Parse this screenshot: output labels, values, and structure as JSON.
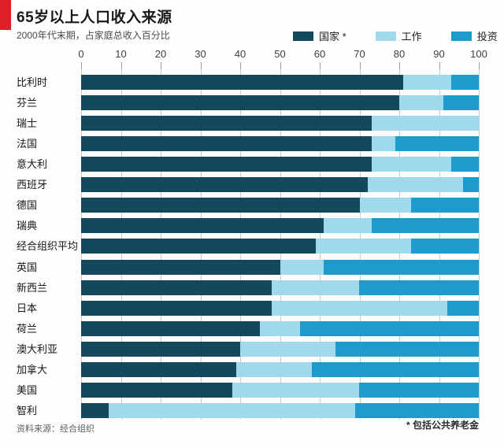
{
  "accent_color": "#dd1f26",
  "header": {
    "title": "65岁以上人口收入来源",
    "subtitle": "2000年代末期，占家庭总收入百分比"
  },
  "legend": [
    {
      "label": "国家 *",
      "color": "#14495d"
    },
    {
      "label": "工作",
      "color": "#a0d8ec"
    },
    {
      "label": "投资",
      "color": "#1e9bcd"
    }
  ],
  "footer": {
    "source": "资料来源：经合组织",
    "footnote": "* 包括公共养老金"
  },
  "chart_data": {
    "type": "bar",
    "orientation": "horizontal",
    "stacked": true,
    "title": "65岁以上人口收入来源",
    "subtitle": "2000年代末期，占家庭总收入百分比",
    "xlim": [
      0,
      100
    ],
    "x_ticks": [
      0,
      10,
      20,
      30,
      40,
      50,
      60,
      70,
      80,
      90,
      100
    ],
    "grid": true,
    "legend_position": "top-right",
    "categories": [
      "比利时",
      "芬兰",
      "瑞士",
      "法国",
      "意大利",
      "西班牙",
      "德国",
      "瑞典",
      "经合组织平均",
      "英国",
      "新西兰",
      "日本",
      "荷兰",
      "澳大利亚",
      "加拿大",
      "美国",
      "智利"
    ],
    "series": [
      {
        "name": "国家 *",
        "color": "#14495d",
        "values": [
          81,
          80,
          73,
          73,
          73,
          72,
          70,
          61,
          59,
          50,
          48,
          48,
          45,
          40,
          39,
          38,
          7
        ]
      },
      {
        "name": "工作",
        "color": "#a0d8ec",
        "values": [
          12,
          11,
          27,
          6,
          20,
          24,
          13,
          12,
          24,
          11,
          22,
          44,
          10,
          24,
          19,
          32,
          62
        ]
      },
      {
        "name": "投资",
        "color": "#1e9bcd",
        "values": [
          7,
          9,
          0,
          21,
          7,
          4,
          17,
          27,
          17,
          39,
          30,
          8,
          45,
          36,
          42,
          30,
          31
        ]
      }
    ]
  }
}
